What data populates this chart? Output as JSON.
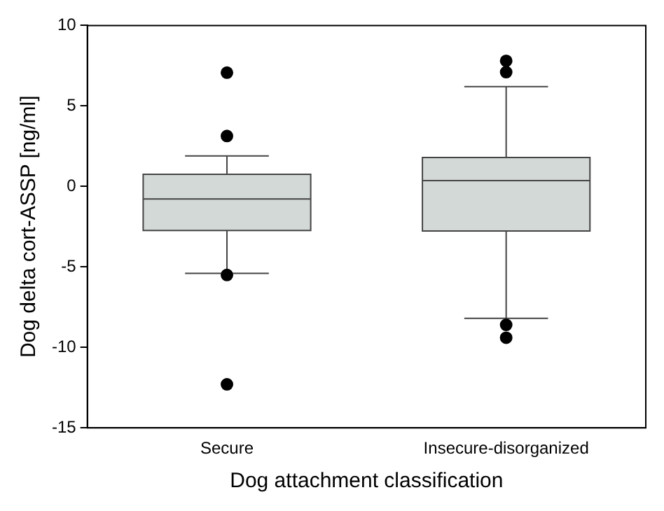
{
  "chart_data": {
    "type": "box",
    "xlabel": "Dog attachment classification",
    "ylabel": "Dog delta cort-ASSP [ng/ml]",
    "categories": [
      "Secure",
      "Insecure-disorganized"
    ],
    "color": "#d3d9d6",
    "boxes": [
      {
        "low": -5.4,
        "q1": -2.74,
        "median": -0.78,
        "q3": 0.75,
        "high": 1.9,
        "outliers": [
          7.07,
          3.13,
          -5.5,
          -12.3
        ]
      },
      {
        "low": -8.2,
        "q1": -2.77,
        "median": 0.36,
        "q3": 1.8,
        "high": 6.2,
        "outliers": [
          7.8,
          7.1,
          -8.6,
          -9.4
        ]
      }
    ],
    "ylim": [
      -15,
      10
    ],
    "yticks": [
      -15,
      -10,
      -5,
      0,
      5,
      10
    ],
    "grid": false,
    "legend": false,
    "marker": "circle"
  }
}
